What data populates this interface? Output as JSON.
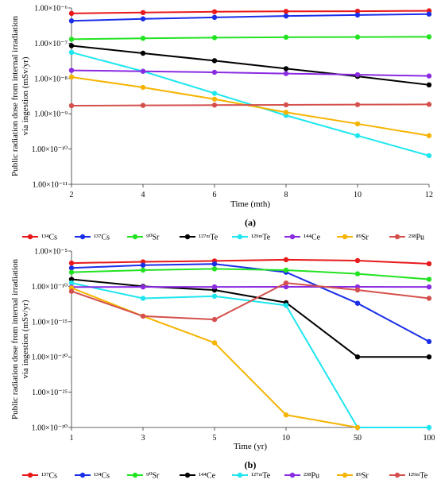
{
  "chart_data": [
    {
      "type": "line",
      "panel_label": "(a)",
      "x_scale": "linear",
      "y_scale": "log",
      "x": [
        2,
        4,
        6,
        8,
        10,
        12
      ],
      "x_tick_labels": [
        "2",
        "4",
        "6",
        "8",
        "10",
        "12"
      ],
      "xlim": [
        2,
        12
      ],
      "ylim": [
        1e-11,
        1e-06
      ],
      "y_tick_values": [
        1e-11,
        1e-10,
        1e-09,
        1e-08,
        1e-07,
        1e-06
      ],
      "y_tick_labels": [
        "1.00×10⁻¹¹",
        "1.00×10⁻¹⁰",
        "1.00×10⁻⁹",
        "1.00×10⁻⁸",
        "1.00×10⁻⁷",
        "1.00×10⁻⁶"
      ],
      "xlabel": "Time (mth)",
      "ylabel_lines": [
        "Public radiation dose from internal irradiation",
        "via ingestion (mSv/yr)"
      ],
      "legend_placement": "bottom",
      "grid": false,
      "series": [
        {
          "name": "¹³⁴Cs",
          "color": "#e8191a",
          "values": [
            7e-07,
            7.4e-07,
            7.8e-07,
            8e-07,
            8.1e-07,
            8.3e-07
          ]
        },
        {
          "name": "¹³⁷Cs",
          "color": "#1a2ee8",
          "values": [
            4.3e-07,
            4.9e-07,
            5.4e-07,
            5.9e-07,
            6.3e-07,
            6.7e-07
          ]
        },
        {
          "name": "⁹⁰Sr",
          "color": "#22e322",
          "values": [
            1.3e-07,
            1.38e-07,
            1.44e-07,
            1.48e-07,
            1.5e-07,
            1.52e-07
          ]
        },
        {
          "name": "¹²⁷ᵐTe",
          "color": "#000000",
          "values": [
            8.5e-08,
            5.2e-08,
            3.2e-08,
            1.9e-08,
            1.15e-08,
            6.6e-09
          ]
        },
        {
          "name": "¹²⁹ᵐTe",
          "color": "#1ee6ee",
          "values": [
            5.5e-08,
            1.6e-08,
            3.8e-09,
            9e-10,
            2.4e-10,
            6.5e-11
          ]
        },
        {
          "name": "¹⁴⁴Ce",
          "color": "#8a2be2",
          "values": [
            1.7e-08,
            1.6e-08,
            1.5e-08,
            1.38e-08,
            1.28e-08,
            1.18e-08
          ]
        },
        {
          "name": "⁸⁹Sr",
          "color": "#f5b400",
          "values": [
            1.1e-08,
            5.6e-09,
            2.6e-09,
            1.1e-09,
            5.2e-10,
            2.4e-10
          ]
        },
        {
          "name": "²³⁸Pu",
          "color": "#d4504c",
          "values": [
            1.7e-09,
            1.73e-09,
            1.76e-09,
            1.79e-09,
            1.82e-09,
            1.85e-09
          ]
        }
      ]
    },
    {
      "type": "line",
      "panel_label": "(b)",
      "x_scale": "category",
      "y_scale": "log",
      "categories": [
        "1",
        "3",
        "5",
        "10",
        "50",
        "100"
      ],
      "ylim": [
        1e-30,
        1e-05
      ],
      "y_tick_values": [
        1e-30,
        1e-25,
        1e-20,
        1e-15,
        1e-10,
        1e-05
      ],
      "y_tick_labels": [
        "1.00×10⁻³⁰",
        "1.00×10⁻²⁵",
        "1.00×10⁻²⁰",
        "1.00×10⁻¹⁵",
        "1.00×10⁻¹⁰",
        "1.00×10⁻⁵"
      ],
      "xlabel": "Time (yr)",
      "ylabel_lines": [
        "Public radiation dose from internal irradiation",
        "via ingestion (mSv/yr)"
      ],
      "legend_placement": "bottom",
      "grid": false,
      "series": [
        {
          "name": "¹³⁷Cs",
          "color": "#e8191a",
          "values": [
            2e-07,
            3e-07,
            4e-07,
            6e-07,
            4.5e-07,
            1.6e-07
          ]
        },
        {
          "name": "¹³⁴Cs",
          "color": "#1a2ee8",
          "values": [
            4e-08,
            1e-07,
            1.5e-07,
            1e-08,
            4e-13,
            1.5e-18
          ]
        },
        {
          "name": "⁹⁰Sr",
          "color": "#22e322",
          "values": [
            1e-08,
            2e-08,
            3e-08,
            2e-08,
            6e-09,
            1e-09
          ]
        },
        {
          "name": "¹⁴⁴Ce",
          "color": "#000000",
          "values": [
            1e-09,
            1e-10,
            3e-11,
            5e-13,
            1e-20,
            1e-20
          ]
        },
        {
          "name": "¹²⁷ᵐTe",
          "color": "#1ee6ee",
          "values": [
            3e-10,
            2e-12,
            4e-12,
            2e-13,
            1e-30,
            1e-30
          ]
        },
        {
          "name": "²³⁸Pu",
          "color": "#8a2be2",
          "values": [
            8e-11,
            8.2e-11,
            8.4e-11,
            8.6e-11,
            8.5e-11,
            8.2e-11
          ]
        },
        {
          "name": "⁸⁹Sr",
          "color": "#f5b400",
          "values": [
            6e-11,
            6e-15,
            1e-18,
            6e-29,
            1e-30,
            null
          ]
        },
        {
          "name": "¹²⁹ᵐTe",
          "color": "#d4504c",
          "values": [
            2e-11,
            6e-15,
            2e-15,
            3e-10,
            3e-11,
            2e-12
          ]
        }
      ]
    }
  ]
}
